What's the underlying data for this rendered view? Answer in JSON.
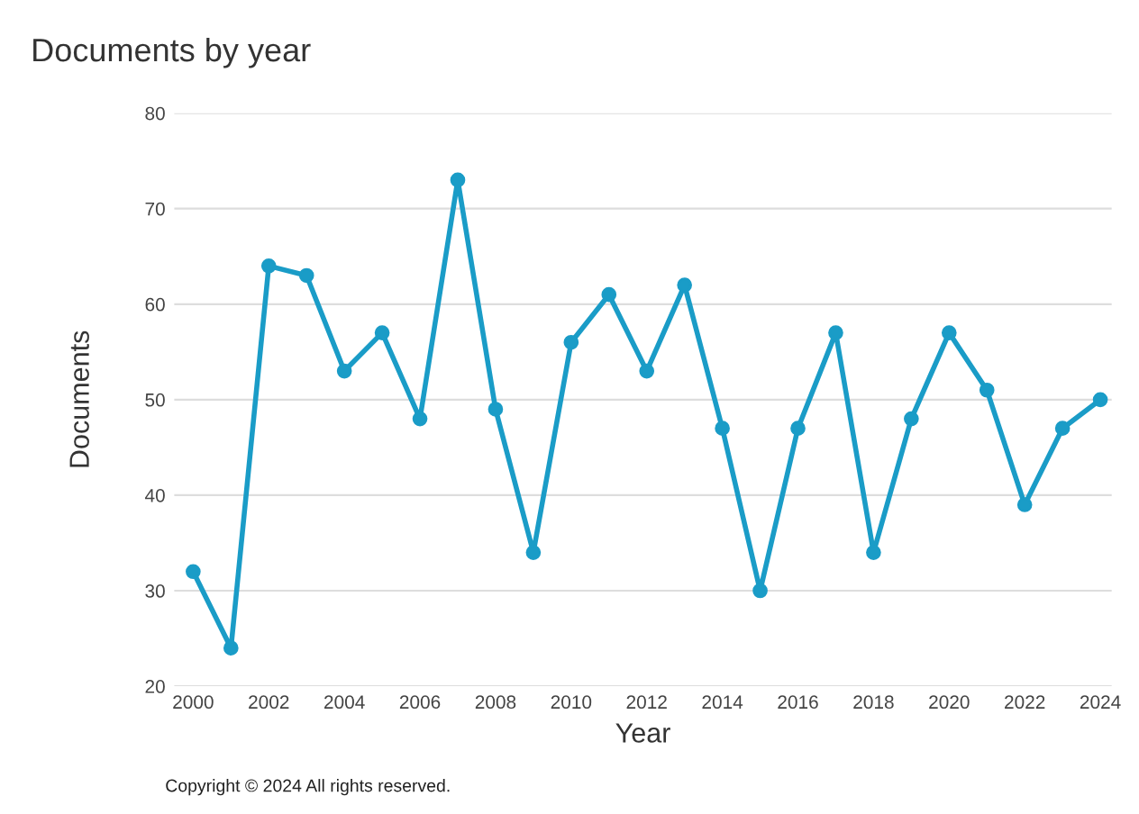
{
  "chart_data": {
    "type": "line",
    "title": "Documents by year",
    "xlabel": "Year",
    "ylabel": "Documents",
    "annotations": [
      "Copyright © 2024 All rights reserved."
    ],
    "x": [
      2000,
      2001,
      2002,
      2003,
      2004,
      2005,
      2006,
      2007,
      2008,
      2009,
      2010,
      2011,
      2012,
      2013,
      2014,
      2015,
      2016,
      2017,
      2018,
      2019,
      2020,
      2021,
      2022,
      2023,
      2024
    ],
    "series": [
      {
        "color": "#1a9cc7",
        "values": [
          32,
          24,
          64,
          63,
          53,
          57,
          48,
          73,
          49,
          34,
          56,
          61,
          53,
          62,
          47,
          30,
          47,
          57,
          34,
          48,
          57,
          51,
          39,
          47,
          50
        ]
      }
    ],
    "xlim": [
      1999.5,
      2024.3
    ],
    "xticks": [
      2000,
      2002,
      2004,
      2006,
      2008,
      2010,
      2012,
      2014,
      2016,
      2018,
      2020,
      2022,
      2024
    ],
    "ylim": [
      20,
      80
    ],
    "yticks": [
      20,
      30,
      40,
      50,
      60,
      70,
      80
    ],
    "grid": "y",
    "marker": "circle",
    "line_style": "solid"
  }
}
